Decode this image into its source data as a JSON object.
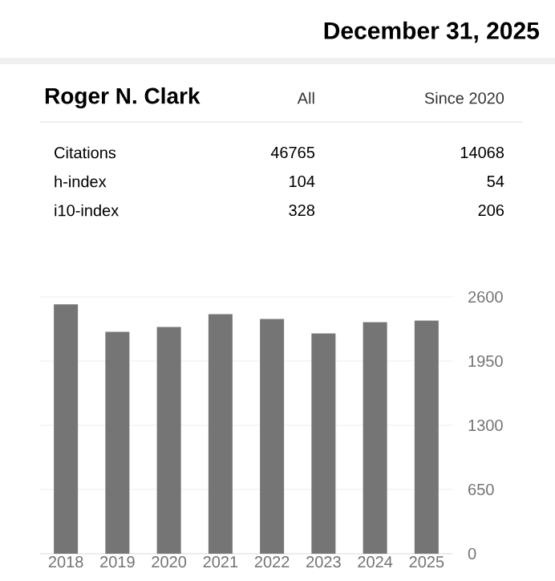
{
  "chart_data": {
    "type": "bar",
    "title": "Roger N. Clark",
    "subtitle": "December 31, 2025",
    "annotations": [
      "All",
      "Since 2020",
      "Citations",
      "46765",
      "14068",
      "h-index",
      "104",
      "54",
      "i10-index",
      "328",
      "206"
    ],
    "categories": [
      "2018",
      "2019",
      "2020",
      "2021",
      "2022",
      "2023",
      "2024",
      "2025"
    ],
    "values": [
      2524,
      2247,
      2296,
      2426,
      2377,
      2231,
      2345,
      2361
    ],
    "color": "#757575",
    "ylim": [
      0,
      2600
    ],
    "yticks": [
      0,
      650,
      1300,
      1950,
      2600
    ],
    "grid": "y"
  }
}
